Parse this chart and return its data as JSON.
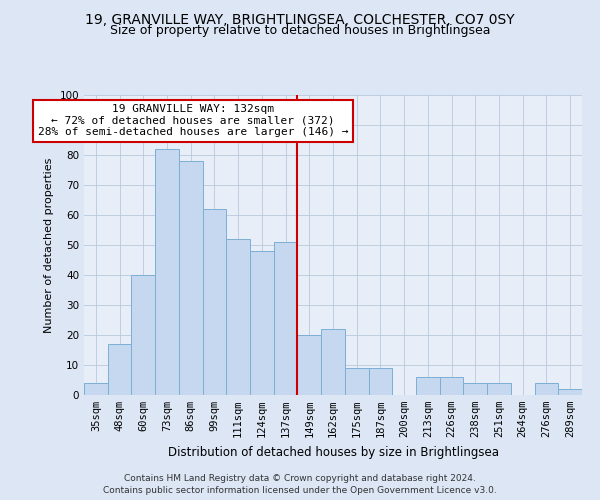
{
  "title1": "19, GRANVILLE WAY, BRIGHTLINGSEA, COLCHESTER, CO7 0SY",
  "title2": "Size of property relative to detached houses in Brightlingsea",
  "xlabel": "Distribution of detached houses by size in Brightlingsea",
  "ylabel": "Number of detached properties",
  "categories": [
    "35sqm",
    "48sqm",
    "60sqm",
    "73sqm",
    "86sqm",
    "99sqm",
    "111sqm",
    "124sqm",
    "137sqm",
    "149sqm",
    "162sqm",
    "175sqm",
    "187sqm",
    "200sqm",
    "213sqm",
    "226sqm",
    "238sqm",
    "251sqm",
    "264sqm",
    "276sqm",
    "289sqm"
  ],
  "values": [
    4,
    17,
    40,
    82,
    78,
    62,
    52,
    48,
    51,
    20,
    22,
    9,
    9,
    0,
    6,
    6,
    4,
    4,
    0,
    4,
    2
  ],
  "bar_color": "#c5d8f0",
  "bar_edge_color": "#7bafd4",
  "background_color": "#dce6f5",
  "plot_bg_color": "#e8eef8",
  "grid_color": "#b8c8dc",
  "vline_x_idx": 8,
  "vline_color": "#cc0000",
  "annotation_line1": "19 GRANVILLE WAY: 132sqm",
  "annotation_line2": "← 72% of detached houses are smaller (372)",
  "annotation_line3": "28% of semi-detached houses are larger (146) →",
  "annotation_box_edge": "#cc0000",
  "annotation_box_face": "#ffffff",
  "ylim": [
    0,
    100
  ],
  "yticks": [
    0,
    10,
    20,
    30,
    40,
    50,
    60,
    70,
    80,
    90,
    100
  ],
  "footnote": "Contains HM Land Registry data © Crown copyright and database right 2024.\nContains public sector information licensed under the Open Government Licence v3.0.",
  "title1_fontsize": 10,
  "title2_fontsize": 9,
  "xlabel_fontsize": 8.5,
  "ylabel_fontsize": 8,
  "tick_fontsize": 7.5,
  "annotation_fontsize": 8,
  "footnote_fontsize": 6.5
}
